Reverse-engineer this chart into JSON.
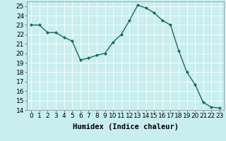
{
  "x": [
    0,
    1,
    2,
    3,
    4,
    5,
    6,
    7,
    8,
    9,
    10,
    11,
    12,
    13,
    14,
    15,
    16,
    17,
    18,
    19,
    20,
    21,
    22,
    23
  ],
  "y": [
    23.0,
    23.0,
    22.2,
    22.2,
    21.7,
    21.3,
    19.3,
    19.5,
    19.8,
    20.0,
    21.2,
    22.0,
    23.5,
    25.1,
    24.8,
    24.3,
    23.5,
    23.0,
    20.3,
    18.0,
    16.7,
    14.8,
    14.3,
    14.2
  ],
  "line_color": "#1a6b5a",
  "marker": "D",
  "marker_size": 2,
  "bg_color": "#c8eef0",
  "grid_color": "#ffffff",
  "xlabel": "Humidex (Indice chaleur)",
  "xlim": [
    -0.5,
    23.5
  ],
  "ylim": [
    14,
    25.5
  ],
  "yticks": [
    14,
    15,
    16,
    17,
    18,
    19,
    20,
    21,
    22,
    23,
    24,
    25
  ],
  "xticks": [
    0,
    1,
    2,
    3,
    4,
    5,
    6,
    7,
    8,
    9,
    10,
    11,
    12,
    13,
    14,
    15,
    16,
    17,
    18,
    19,
    20,
    21,
    22,
    23
  ],
  "tick_fontsize": 6.5,
  "xlabel_fontsize": 7.5,
  "line_width": 1.0
}
